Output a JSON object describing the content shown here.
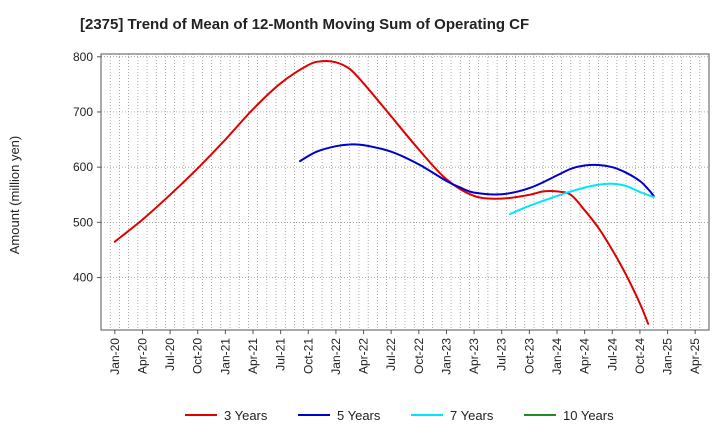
{
  "chart_data": {
    "type": "line",
    "title": "[2375]  Trend of Mean of 12-Month Moving Sum of Operating CF",
    "xlabel": "",
    "ylabel": "Amount (million yen)",
    "ylim": [
      305,
      805
    ],
    "yticks": [
      400,
      500,
      600,
      700,
      800
    ],
    "categories": [
      "Jan-20",
      "Apr-20",
      "Jul-20",
      "Oct-20",
      "Jan-21",
      "Apr-21",
      "Jul-21",
      "Oct-21",
      "Jan-22",
      "Apr-22",
      "Jul-22",
      "Oct-22",
      "Jan-23",
      "Apr-23",
      "Jul-23",
      "Oct-23",
      "Jan-24",
      "Apr-24",
      "Jul-24",
      "Oct-24",
      "Jan-25",
      "Apr-25"
    ],
    "grid": true,
    "legend_position": "bottom",
    "series": [
      {
        "name": "3 Years",
        "color": "#e00000",
        "points": [
          [
            0,
            465
          ],
          [
            1,
            505
          ],
          [
            2,
            550
          ],
          [
            3,
            598
          ],
          [
            4,
            650
          ],
          [
            5,
            705
          ],
          [
            6,
            752
          ],
          [
            7,
            785
          ],
          [
            7.5,
            792
          ],
          [
            8,
            790
          ],
          [
            8.5,
            778
          ],
          [
            9,
            752
          ],
          [
            10,
            692
          ],
          [
            11,
            632
          ],
          [
            12,
            578
          ],
          [
            13,
            548
          ],
          [
            14,
            543
          ],
          [
            15,
            550
          ],
          [
            15.5,
            556
          ],
          [
            16,
            556
          ],
          [
            16.5,
            550
          ],
          [
            17,
            522
          ],
          [
            17.5,
            490
          ],
          [
            18,
            450
          ],
          [
            18.5,
            405
          ],
          [
            19,
            353
          ],
          [
            19.3,
            316
          ]
        ]
      },
      {
        "name": "5 Years",
        "color": "#0000cc",
        "points": [
          [
            6.7,
            611
          ],
          [
            7.3,
            628
          ],
          [
            8,
            638
          ],
          [
            8.5,
            641
          ],
          [
            9,
            640
          ],
          [
            10,
            628
          ],
          [
            11,
            605
          ],
          [
            12,
            575
          ],
          [
            12.5,
            563
          ],
          [
            13,
            554
          ],
          [
            14,
            551
          ],
          [
            15,
            562
          ],
          [
            16,
            585
          ],
          [
            16.5,
            597
          ],
          [
            17,
            603
          ],
          [
            17.5,
            604
          ],
          [
            18,
            600
          ],
          [
            18.5,
            590
          ],
          [
            19,
            575
          ],
          [
            19.3,
            560
          ],
          [
            19.5,
            548
          ]
        ]
      },
      {
        "name": "7 Years",
        "color": "#00e5ff",
        "points": [
          [
            14.3,
            515
          ],
          [
            15,
            530
          ],
          [
            16,
            548
          ],
          [
            16.5,
            556
          ],
          [
            17,
            563
          ],
          [
            17.5,
            568
          ],
          [
            18,
            570
          ],
          [
            18.5,
            566
          ],
          [
            19,
            555
          ],
          [
            19.5,
            546
          ]
        ]
      },
      {
        "name": "10 Years",
        "color": "#228b22",
        "points": []
      }
    ]
  }
}
